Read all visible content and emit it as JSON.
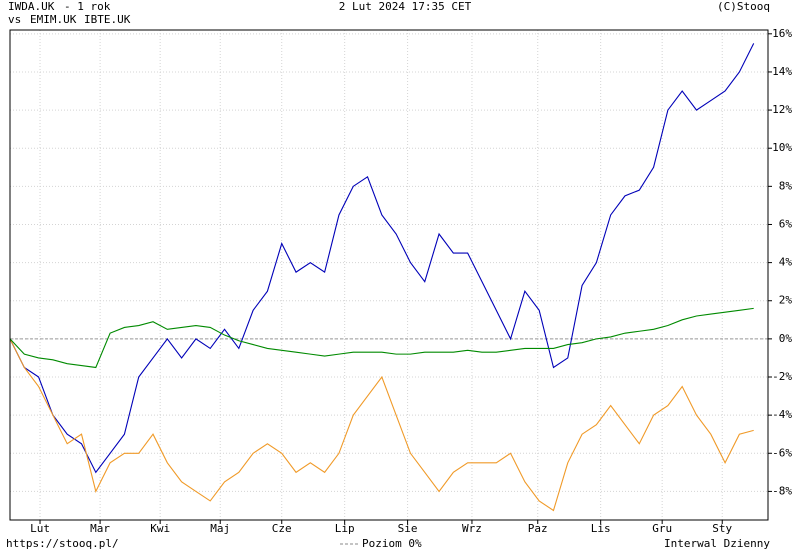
{
  "chart_data": {
    "type": "line",
    "title": "- 1 rok",
    "vs_label": "vs",
    "timestamp": "2 Lut 2024 17:35 CET",
    "copyright": "(C)Stooq",
    "source": "https://stooq.pl/",
    "reference_label": "Poziom 0%",
    "interval": "Interwal Dzienny",
    "reference_line": 0,
    "xlim": [
      0,
      53
    ],
    "ylim": [
      -9.5,
      16.2
    ],
    "xticks": [
      {
        "value": 2.1,
        "label": "Lut"
      },
      {
        "value": 6.3,
        "label": "Mar"
      },
      {
        "value": 10.5,
        "label": "Kwi"
      },
      {
        "value": 14.7,
        "label": "Maj"
      },
      {
        "value": 19.0,
        "label": "Cze"
      },
      {
        "value": 23.4,
        "label": "Lip"
      },
      {
        "value": 27.8,
        "label": "Sie"
      },
      {
        "value": 32.3,
        "label": "Wrz"
      },
      {
        "value": 36.9,
        "label": "Paz"
      },
      {
        "value": 41.3,
        "label": "Lis"
      },
      {
        "value": 45.6,
        "label": "Gru"
      },
      {
        "value": 49.8,
        "label": "Sty"
      }
    ],
    "yticks": [
      {
        "value": -8,
        "label": "-8%"
      },
      {
        "value": -6,
        "label": "-6%"
      },
      {
        "value": -4,
        "label": "-4%"
      },
      {
        "value": -2,
        "label": "-2%"
      },
      {
        "value": 0,
        "label": "0%"
      },
      {
        "value": 2,
        "label": "2%"
      },
      {
        "value": 4,
        "label": "4%"
      },
      {
        "value": 6,
        "label": "6%"
      },
      {
        "value": 8,
        "label": "8%"
      },
      {
        "value": 10,
        "label": "10%"
      },
      {
        "value": 12,
        "label": "12%"
      },
      {
        "value": 14,
        "label": "14%"
      },
      {
        "value": 16,
        "label": "16%"
      }
    ],
    "grid": true,
    "series": [
      {
        "name": "IWDA.UK",
        "color": "#0000b8",
        "values": [
          0,
          -1.5,
          -2,
          -4,
          -5,
          -5.5,
          -7,
          -6,
          -5,
          -2,
          -1,
          0,
          -1,
          0,
          -0.5,
          0.5,
          -0.5,
          1.5,
          2.5,
          5,
          3.5,
          4,
          3.5,
          6.5,
          8,
          8.5,
          6.5,
          5.5,
          4,
          3,
          5.5,
          4.5,
          4.5,
          3,
          1.5,
          0,
          2.5,
          1.5,
          -1.5,
          -1,
          2.8,
          4,
          6.5,
          7.5,
          7.8,
          9,
          12,
          13,
          12,
          12.5,
          13,
          14,
          15.5
        ]
      },
      {
        "name": "EMIM.UK",
        "color": "#f09a28",
        "values": [
          0,
          -1.5,
          -2.5,
          -4,
          -5.5,
          -5,
          -8,
          -6.5,
          -6,
          -6,
          -5,
          -6.5,
          -7.5,
          -8,
          -8.5,
          -7.5,
          -7,
          -6,
          -5.5,
          -6,
          -7,
          -6.5,
          -7,
          -6,
          -4,
          -3,
          -2,
          -4,
          -6,
          -7,
          -8,
          -7,
          -6.5,
          -6.5,
          -6.5,
          -6,
          -7.5,
          -8.5,
          -9,
          -6.5,
          -5,
          -4.5,
          -3.5,
          -4.5,
          -5.5,
          -4,
          -3.5,
          -2.5,
          -4,
          -5,
          -6.5,
          -5,
          -4.8
        ]
      },
      {
        "name": "IBTE.UK",
        "color": "#008a00",
        "values": [
          0,
          -0.8,
          -1,
          -1.1,
          -1.3,
          -1.4,
          -1.5,
          0.3,
          0.6,
          0.7,
          0.9,
          0.5,
          0.6,
          0.7,
          0.6,
          0.2,
          -0.1,
          -0.3,
          -0.5,
          -0.6,
          -0.7,
          -0.8,
          -0.9,
          -0.8,
          -0.7,
          -0.7,
          -0.7,
          -0.8,
          -0.8,
          -0.7,
          -0.7,
          -0.7,
          -0.6,
          -0.7,
          -0.7,
          -0.6,
          -0.5,
          -0.5,
          -0.5,
          -0.3,
          -0.2,
          0,
          0.1,
          0.3,
          0.4,
          0.5,
          0.7,
          1.0,
          1.2,
          1.3,
          1.4,
          1.5,
          1.6
        ]
      }
    ]
  }
}
